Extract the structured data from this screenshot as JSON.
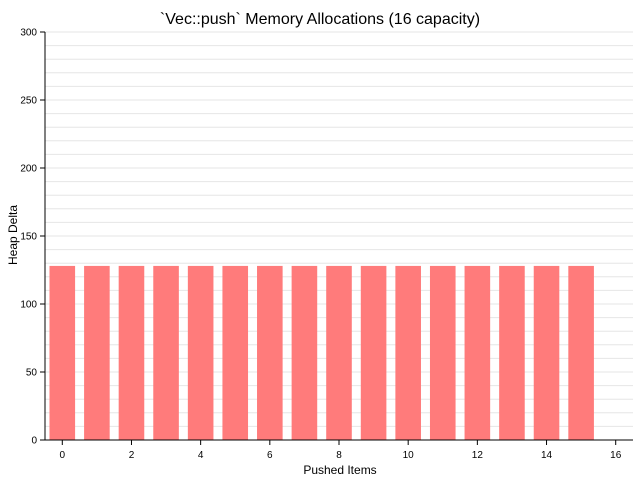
{
  "chart_data": {
    "type": "bar",
    "title": "`Vec::push` Memory Allocations (16 capacity)",
    "xlabel": "Pushed Items",
    "ylabel": "Heap Delta",
    "x": [
      0,
      1,
      2,
      3,
      4,
      5,
      6,
      7,
      8,
      9,
      10,
      11,
      12,
      13,
      14,
      15
    ],
    "values": [
      128,
      128,
      128,
      128,
      128,
      128,
      128,
      128,
      128,
      128,
      128,
      128,
      128,
      128,
      128,
      128
    ],
    "xlim": [
      -0.5,
      16.5
    ],
    "ylim": [
      0,
      300
    ],
    "x_ticks": [
      0,
      2,
      4,
      6,
      8,
      10,
      12,
      14,
      16
    ],
    "y_ticks": [
      0,
      50,
      100,
      150,
      200,
      250,
      300
    ],
    "grid": "horizontal",
    "bar_color": "#ff7b7b",
    "grid_color": "#e6e6e6"
  }
}
